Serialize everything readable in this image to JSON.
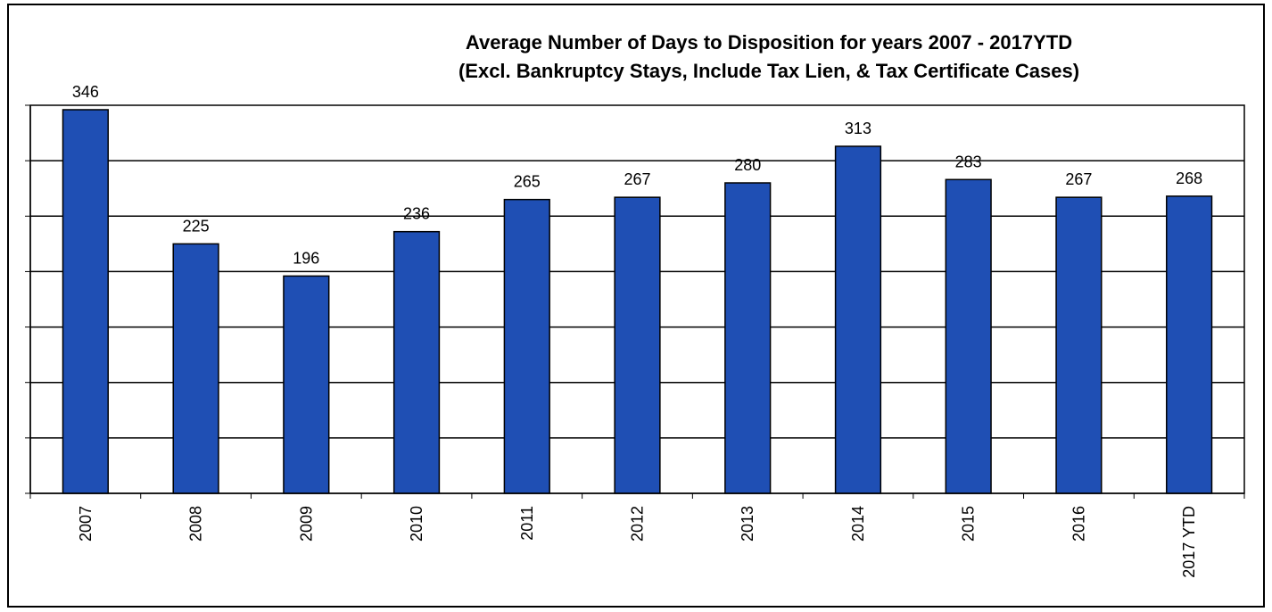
{
  "chart_data": {
    "type": "bar",
    "title": [
      "Average Number of Days to Disposition  for years 2007 - 2017YTD",
      "(Excl. Bankruptcy Stays, Include Tax Lien, & Tax Certificate Cases)"
    ],
    "categories": [
      "2007",
      "2008",
      "2009",
      "2010",
      "2011",
      "2012",
      "2013",
      "2014",
      "2015",
      "2016",
      "2017 YTD"
    ],
    "values": [
      346,
      225,
      196,
      236,
      265,
      267,
      280,
      313,
      283,
      267,
      268
    ],
    "ylim": [
      0,
      350
    ],
    "grid": true,
    "legend": "none",
    "bar_color": "#1f4fb4"
  }
}
